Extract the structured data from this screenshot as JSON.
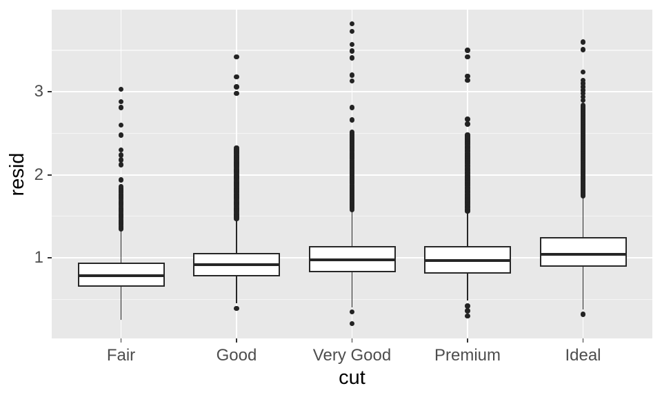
{
  "figure": {
    "background_color": "#FFFFFF",
    "panel_background_color": "#E8E8E8",
    "grid_major_color": "#FFFFFF",
    "grid_minor_color": "rgba(255,255,255,0.55)",
    "box_line_color": "#262626",
    "box_fill_color": "#FFFFFF",
    "outlier_color": "#232323",
    "tick_mark_color": "#333333",
    "axis_text_color": "#4D4D4D",
    "axis_title_color": "#000000"
  },
  "chart_data": {
    "type": "boxplot",
    "title": "",
    "xlabel": "cut",
    "ylabel": "resid",
    "categories": [
      "Fair",
      "Good",
      "Very Good",
      "Premium",
      "Ideal"
    ],
    "ylim": [
      0.03,
      3.99
    ],
    "y_major_ticks": [
      1,
      2,
      3
    ],
    "y_tick_labels": [
      "1",
      "2",
      "3"
    ],
    "y_minor_gridlines": [
      0.5,
      1.5,
      2.5,
      3.5
    ],
    "grid": "on",
    "legend": "none",
    "series": [
      {
        "category": "Fair",
        "whisker_low": 0.25,
        "q1": 0.65,
        "median": 0.79,
        "q3": 0.94,
        "whisker_high": 1.33,
        "outliers_low": [],
        "outlier_clusters_high": [
          {
            "from": 1.35,
            "to": 1.86,
            "step": 0.015
          }
        ],
        "outlier_points_high": [
          1.94,
          2.12,
          2.18,
          2.24,
          2.3,
          2.48,
          2.6,
          2.81,
          2.88,
          3.03
        ]
      },
      {
        "category": "Good",
        "whisker_low": 0.45,
        "q1": 0.78,
        "median": 0.92,
        "q3": 1.06,
        "whisker_high": 1.47,
        "outliers_low": [
          0.39
        ],
        "outlier_clusters_high": [
          {
            "from": 1.47,
            "to": 2.33,
            "step": 0.015
          }
        ],
        "outlier_points_high": [
          2.98,
          3.06,
          3.18,
          3.42
        ]
      },
      {
        "category": "Very Good",
        "whisker_low": 0.4,
        "q1": 0.83,
        "median": 0.98,
        "q3": 1.14,
        "whisker_high": 1.58,
        "outliers_low": [
          0.21,
          0.35
        ],
        "outlier_clusters_high": [
          {
            "from": 1.58,
            "to": 2.52,
            "step": 0.013
          }
        ],
        "outlier_points_high": [
          2.66,
          2.81,
          3.13,
          3.2,
          3.41,
          3.49,
          3.57,
          3.73,
          3.82
        ]
      },
      {
        "category": "Premium",
        "whisker_low": 0.49,
        "q1": 0.81,
        "median": 0.97,
        "q3": 1.14,
        "whisker_high": 1.56,
        "outliers_low": [
          0.3,
          0.36,
          0.42
        ],
        "outlier_clusters_high": [
          {
            "from": 1.56,
            "to": 2.49,
            "step": 0.014
          }
        ],
        "outlier_points_high": [
          2.61,
          2.67,
          3.14,
          3.19,
          3.42,
          3.5
        ]
      },
      {
        "category": "Ideal",
        "whisker_low": 0.38,
        "q1": 0.89,
        "median": 1.04,
        "q3": 1.25,
        "whisker_high": 1.78,
        "outliers_low": [
          0.32
        ],
        "outlier_clusters_high": [
          {
            "from": 1.75,
            "to": 2.85,
            "step": 0.012
          },
          {
            "from": 2.9,
            "to": 3.14,
            "step": 0.04
          }
        ],
        "outlier_points_high": [
          3.24,
          3.51,
          3.6
        ]
      }
    ]
  }
}
